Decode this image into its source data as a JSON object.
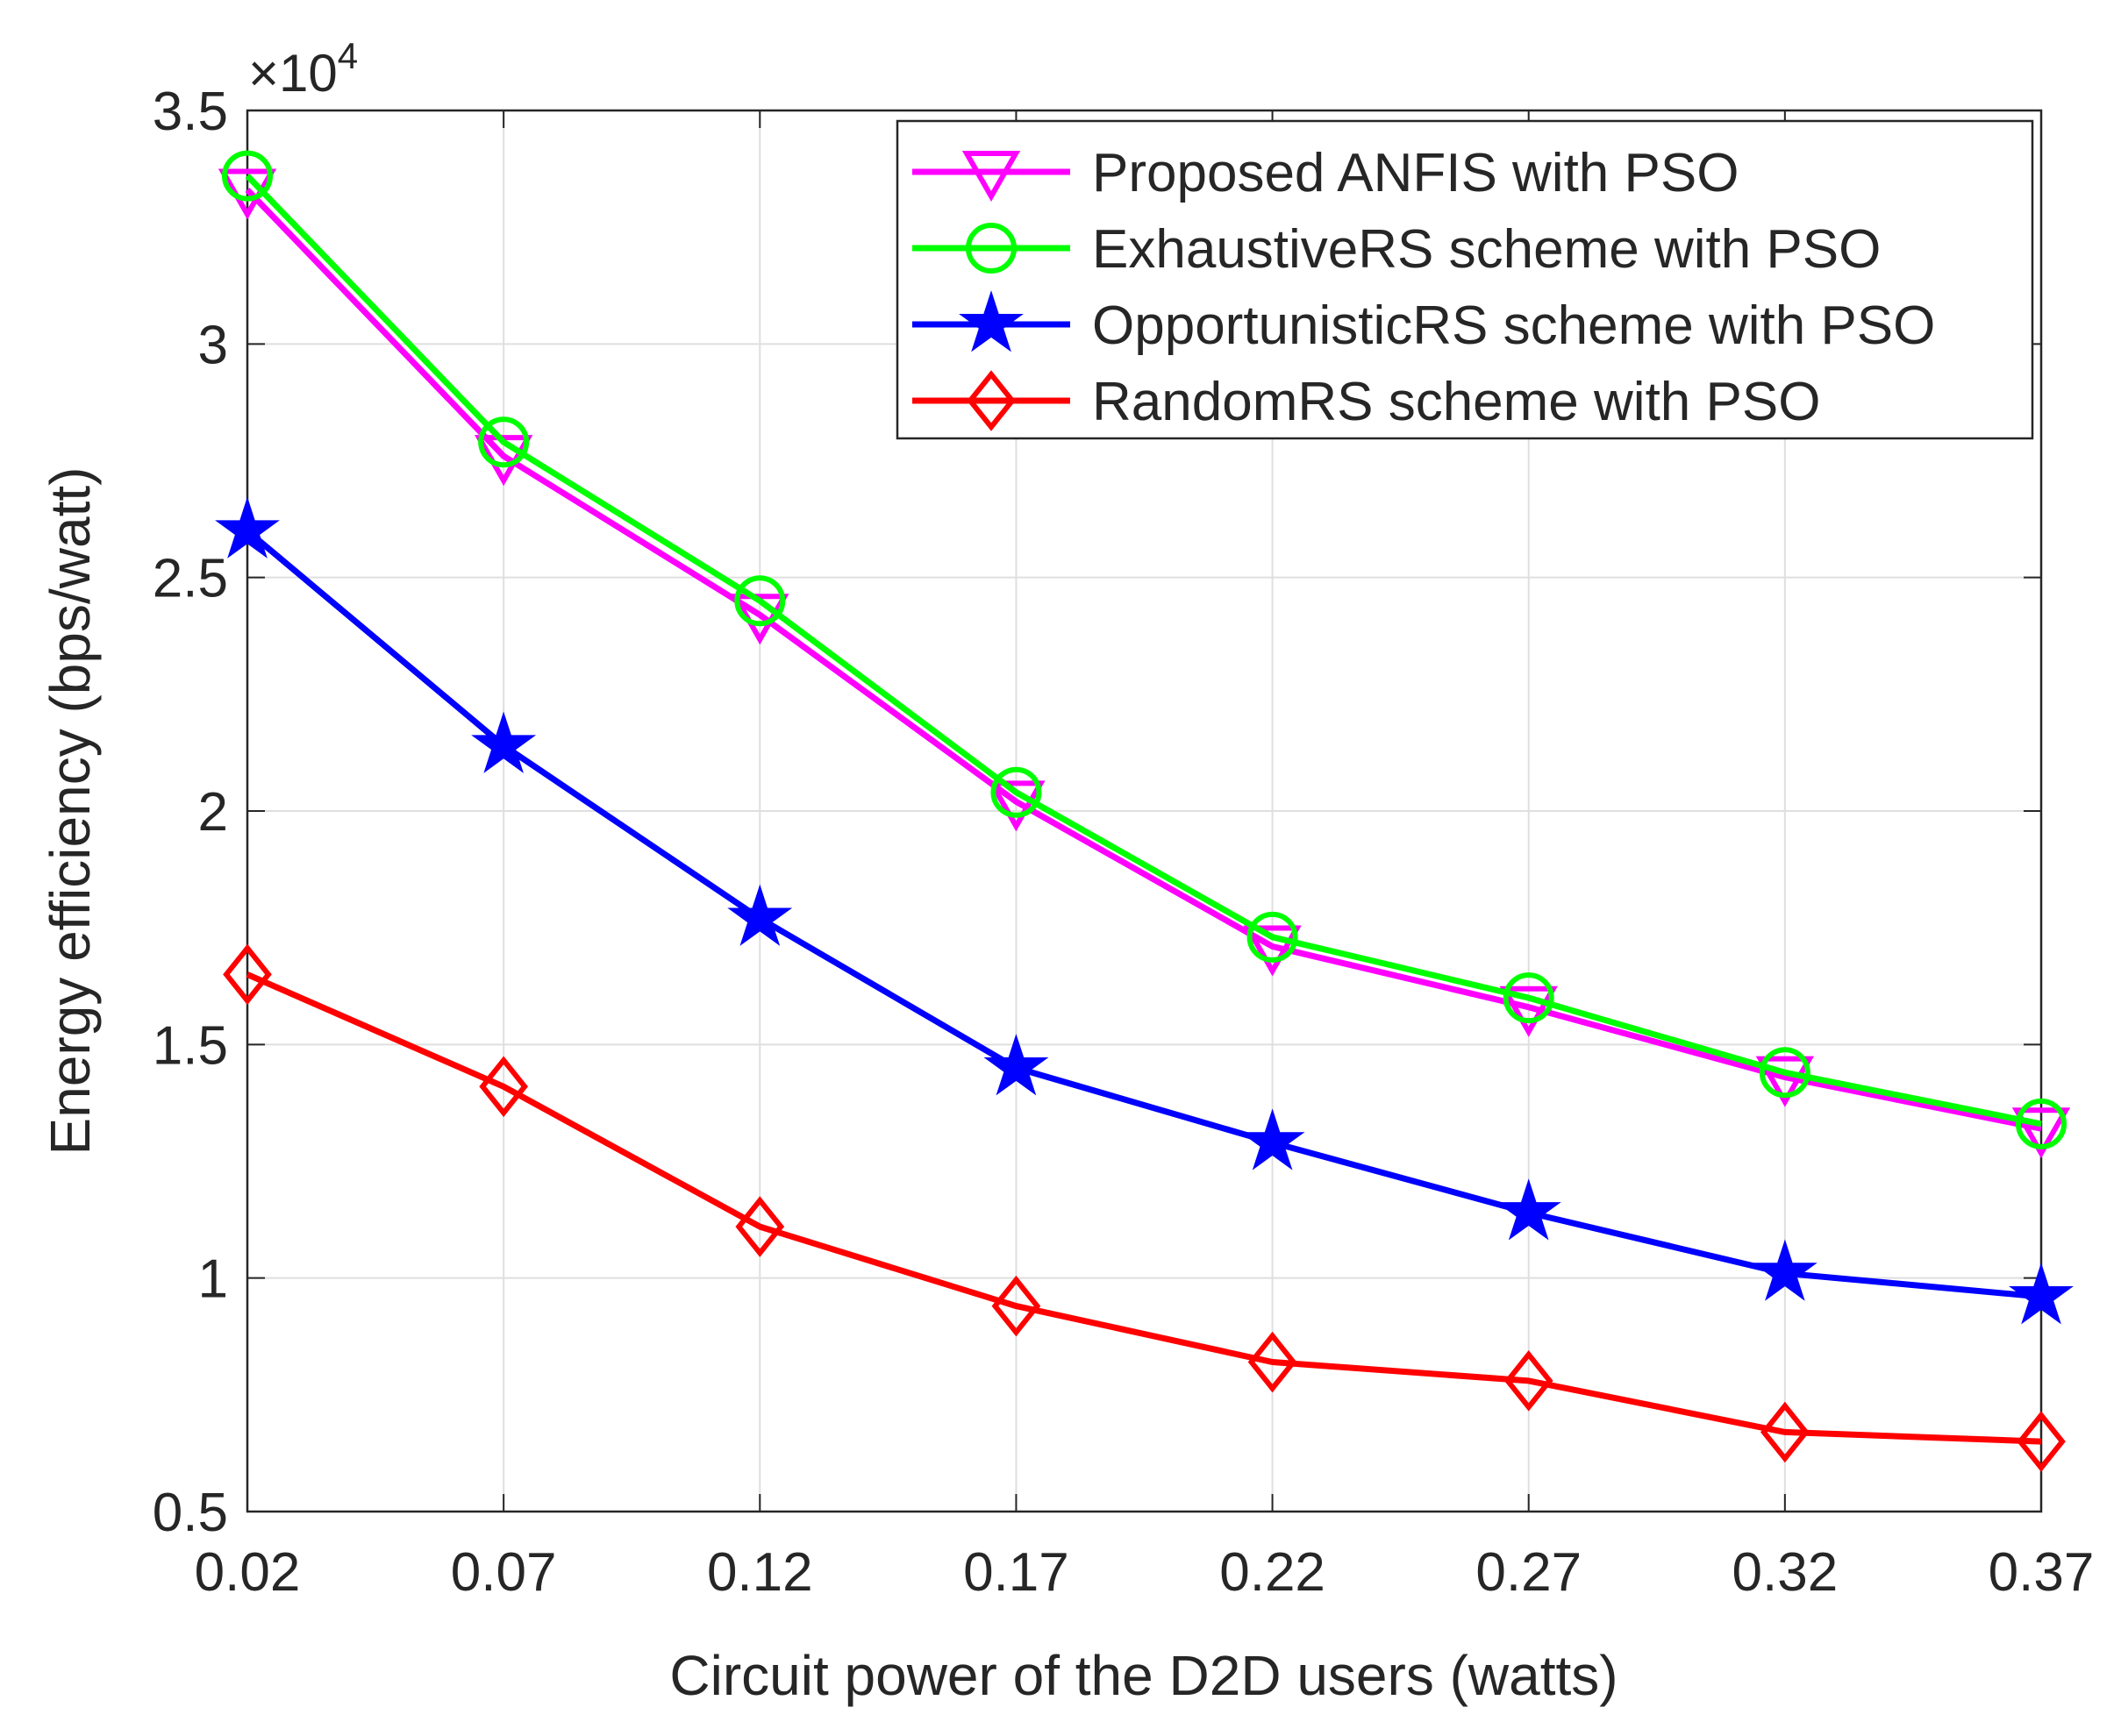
{
  "chart_data": {
    "type": "line",
    "title": "",
    "xlabel": "Circuit power of the D2D users (watts)",
    "ylabel": "Energy efficiency (bps/watt)",
    "x": [
      0.02,
      0.07,
      0.12,
      0.17,
      0.22,
      0.27,
      0.32,
      0.37
    ],
    "x_tick_labels": [
      "0.02",
      "0.07",
      "0.12",
      "0.17",
      "0.22",
      "0.27",
      "0.32",
      "0.37"
    ],
    "xlim": [
      0.02,
      0.37
    ],
    "ylim": [
      0.5,
      3.5
    ],
    "y_ticks": [
      0.5,
      1,
      1.5,
      2,
      2.5,
      3,
      3.5
    ],
    "y_tick_labels": [
      "0.5",
      "1",
      "1.5",
      "2",
      "2.5",
      "3",
      "3.5"
    ],
    "y_multiplier": {
      "base": "×10",
      "exponent": "4"
    },
    "grid": true,
    "legend_position": "top-right",
    "series": [
      {
        "name": "Proposed ANFIS with PSO",
        "color": "#ff00ff",
        "marker": "triangle-down",
        "values": [
          3.33,
          2.76,
          2.42,
          2.02,
          1.71,
          1.58,
          1.43,
          1.32
        ]
      },
      {
        "name": "ExhaustiveRS scheme with PSO",
        "color": "#00ff00",
        "marker": "circle",
        "values": [
          3.36,
          2.79,
          2.45,
          2.04,
          1.73,
          1.6,
          1.44,
          1.33
        ]
      },
      {
        "name": "OpportunisticRS scheme with PSO",
        "color": "#0000ff",
        "marker": "star",
        "values": [
          2.6,
          2.14,
          1.77,
          1.45,
          1.29,
          1.14,
          1.01,
          0.96
        ]
      },
      {
        "name": "RandomRS scheme with PSO",
        "color": "#ff0000",
        "marker": "diamond",
        "values": [
          1.65,
          1.41,
          1.11,
          0.94,
          0.82,
          0.78,
          0.67,
          0.65
        ]
      }
    ]
  }
}
